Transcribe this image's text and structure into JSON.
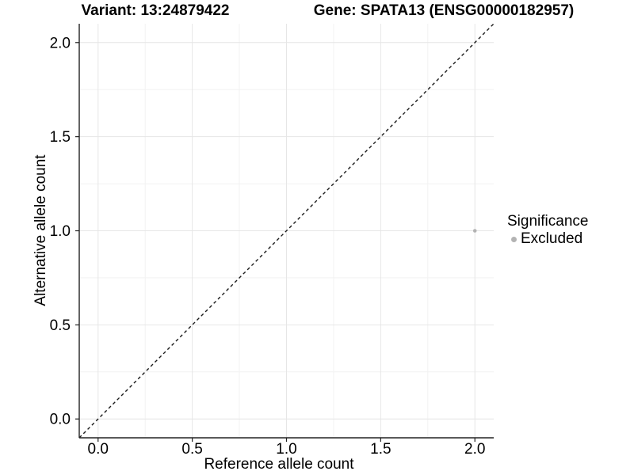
{
  "header": {
    "title_left": "Variant: 13:24879422",
    "title_right": "Gene: SPATA13 (ENSG00000182957)"
  },
  "chart_data": {
    "type": "scatter",
    "title_left": "Variant: 13:24879422",
    "title_right": "Gene: SPATA13 (ENSG00000182957)",
    "xlabel": "Reference allele count",
    "ylabel": "Alternative allele count",
    "xlim": [
      -0.1,
      2.1
    ],
    "ylim": [
      -0.1,
      2.1
    ],
    "x_ticks": [
      0.0,
      0.5,
      1.0,
      1.5,
      2.0
    ],
    "x_tick_labels": [
      "0.0",
      "0.5",
      "1.0",
      "1.5",
      "2.0"
    ],
    "y_ticks": [
      0.0,
      0.5,
      1.0,
      1.5,
      2.0
    ],
    "y_tick_labels": [
      "0.0",
      "0.5",
      "1.0",
      "1.5",
      "2.0"
    ],
    "minor_ticks": [
      0.25,
      0.75,
      1.25,
      1.75
    ],
    "grid": true,
    "reference_line": {
      "style": "dashed",
      "slope": 1,
      "intercept": 0,
      "equation": "y = x",
      "color": "#1a1a1a"
    },
    "points": [
      {
        "x": 2.0,
        "y": 1.0,
        "significance": "Excluded"
      }
    ],
    "legend": {
      "title": "Significance",
      "position": "right",
      "items": [
        {
          "label": "Excluded",
          "color": "#b3b3b3"
        }
      ]
    },
    "colors": {
      "excluded": "#b3b3b3",
      "grid_major": "#e6e6e6",
      "grid_minor": "#f2f2f2",
      "axis": "#222222"
    }
  }
}
